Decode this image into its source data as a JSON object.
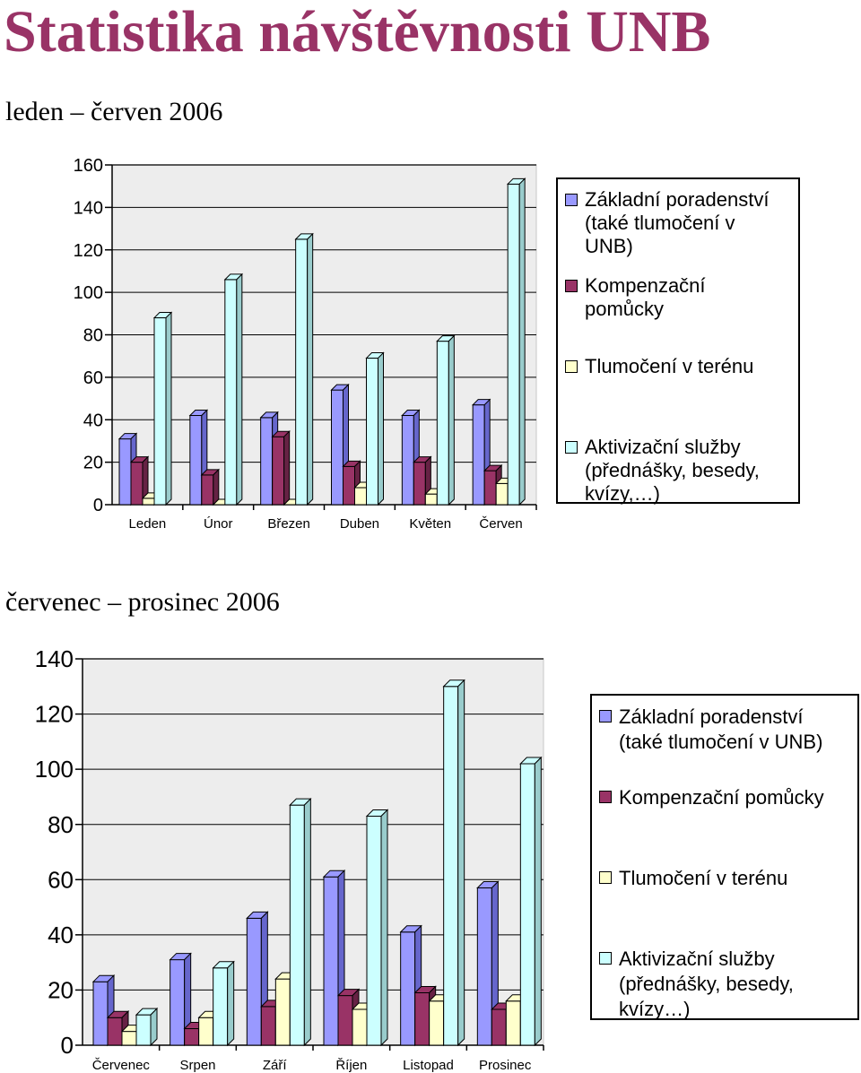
{
  "title": "Statistika návštěvnosti UNB",
  "series_colors": [
    "#9999ff",
    "#993366",
    "#ffffcc",
    "#ccffff"
  ],
  "series_colors_dark": [
    "#6666cc",
    "#662244",
    "#cccc99",
    "#99cccc"
  ],
  "chart_data": [
    {
      "type": "bar",
      "title": "leden – červen 2006",
      "categories": [
        "Leden",
        "Únor",
        "Březen",
        "Duben",
        "Květen",
        "Červen"
      ],
      "ylim": [
        0,
        160
      ],
      "yticks": [
        0,
        20,
        40,
        60,
        80,
        100,
        120,
        140,
        160
      ],
      "grid": true,
      "legend_position": "right",
      "series": [
        {
          "name": "Základní poradenství (také tlumočení v UNB)",
          "values": [
            31,
            42,
            41,
            54,
            42,
            47
          ]
        },
        {
          "name": "Kompenzační pomůcky",
          "values": [
            20,
            14,
            32,
            18,
            20,
            16
          ]
        },
        {
          "name": "Tlumočení v terénu",
          "values": [
            3,
            0,
            0,
            8,
            5,
            10
          ]
        },
        {
          "name": "Aktivizační služby (přednášky, besedy, kvízy,…)",
          "values": [
            88,
            106,
            125,
            69,
            77,
            151
          ]
        }
      ]
    },
    {
      "type": "bar",
      "title": "červenec – prosinec 2006",
      "categories": [
        "Červenec",
        "Srpen",
        "Září",
        "Říjen",
        "Listopad",
        "Prosinec"
      ],
      "ylim": [
        0,
        140
      ],
      "yticks": [
        0,
        20,
        40,
        60,
        80,
        100,
        120,
        140
      ],
      "grid": true,
      "legend_position": "right",
      "series": [
        {
          "name": "Základní poradenství (také tlumočení v UNB)",
          "values": [
            23,
            31,
            46,
            61,
            41,
            57
          ]
        },
        {
          "name": "Kompenzační pomůcky",
          "values": [
            10,
            6,
            14,
            18,
            19,
            13
          ]
        },
        {
          "name": "Tlumočení v terénu",
          "values": [
            5,
            10,
            24,
            13,
            16,
            16
          ]
        },
        {
          "name": "Aktivizační služby (přednášky, besedy, kvízy…)",
          "values": [
            11,
            28,
            87,
            83,
            130,
            102
          ]
        }
      ]
    }
  ],
  "legend1": {
    "lines": [
      [
        "Základní poradenství",
        "(také tlumočení v",
        "UNB)"
      ],
      [
        "Kompenzační",
        "pomůcky"
      ],
      [
        "Tlumočení v terénu"
      ],
      [
        "Aktivizační služby",
        "(přednášky, besedy,",
        "kvízy,…)"
      ]
    ]
  },
  "legend2": {
    "lines": [
      [
        "Základní poradenství",
        "(také tlumočení v UNB)"
      ],
      [
        "Kompenzační pomůcky"
      ],
      [
        "Tlumočení v terénu"
      ],
      [
        "Aktivizační služby",
        "(přednášky, besedy,",
        "kvízy…)"
      ]
    ]
  }
}
